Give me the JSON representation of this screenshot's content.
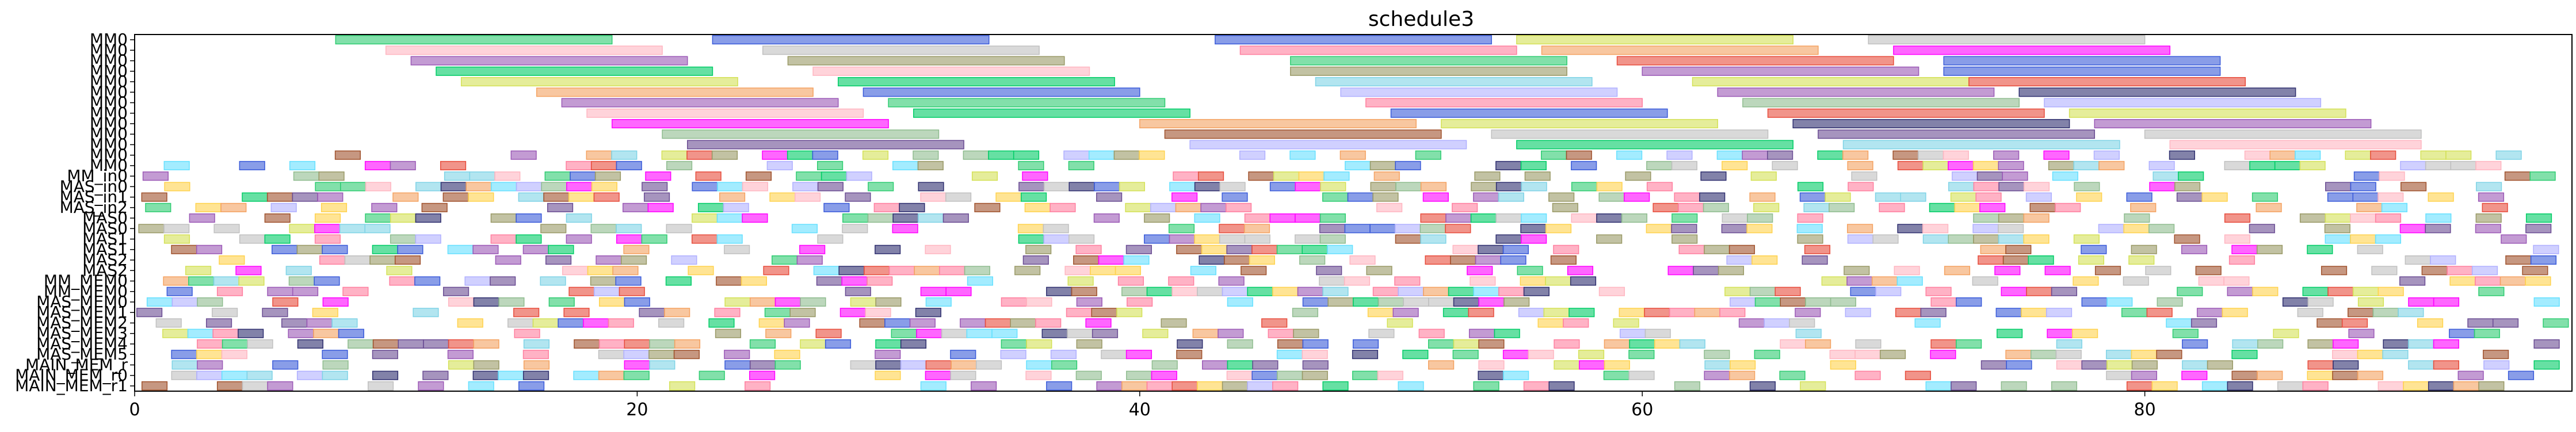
{
  "chart_data": {
    "type": "gantt",
    "title": "schedule3",
    "xlabel": "",
    "ylabel": "",
    "xlim": [
      0,
      97
    ],
    "x_ticks": [
      0,
      20,
      40,
      60,
      80
    ],
    "grid": false,
    "rows": [
      "MM0",
      "MM0",
      "MM0",
      "MM0",
      "MM0",
      "MM0",
      "MM0",
      "MM0",
      "MM0",
      "MM0",
      "MM0",
      "MM0",
      "MM0",
      "MM_in0",
      "MAS_in0",
      "MAS_in1",
      "MAS_in2",
      "MAS0",
      "MAS0",
      "MAS1",
      "MAS1",
      "MAS2",
      "MAS2",
      "MM_MEM0",
      "MM_MEM0",
      "MAS_MEM0",
      "MAS_MEM1",
      "MAS_MEM2",
      "MAS_MEM3",
      "MAS_MEM4",
      "MAS_MEM5",
      "MAIN_MEM_r",
      "MAIN_MEM_r0",
      "MAIN_MEM_r1"
    ],
    "palette": [
      "#2ecc71",
      "#3a5bd9",
      "#c0c0c0",
      "#ff7f9f",
      "#9b59b6",
      "#8fbc8f",
      "#e74c3c",
      "#7fd3e6",
      "#d4e157",
      "#f4a261",
      "#6a4c93",
      "#b0b0ff",
      "#a0522d",
      "#66e0ff",
      "#2f2f6f",
      "#ffb6c1",
      "#00cc66",
      "#ff00ff",
      "#ffd24d",
      "#999966"
    ],
    "long_bars": [
      {
        "row": 0,
        "start": 8,
        "end": 19,
        "c": 0
      },
      {
        "row": 0,
        "start": 23,
        "end": 34,
        "c": 1
      },
      {
        "row": 0,
        "start": 43,
        "end": 54,
        "c": 1
      },
      {
        "row": 0,
        "start": 55,
        "end": 66,
        "c": 8
      },
      {
        "row": 0,
        "start": 69,
        "end": 80,
        "c": 2
      },
      {
        "row": 1,
        "start": 10,
        "end": 21,
        "c": 15
      },
      {
        "row": 1,
        "start": 25,
        "end": 36,
        "c": 2
      },
      {
        "row": 1,
        "start": 44,
        "end": 55,
        "c": 3
      },
      {
        "row": 1,
        "start": 56,
        "end": 67,
        "c": 9
      },
      {
        "row": 1,
        "start": 70,
        "end": 81,
        "c": 17
      },
      {
        "row": 2,
        "start": 11,
        "end": 22,
        "c": 4
      },
      {
        "row": 2,
        "start": 26,
        "end": 37,
        "c": 19
      },
      {
        "row": 2,
        "start": 46,
        "end": 57,
        "c": 0
      },
      {
        "row": 2,
        "start": 59,
        "end": 70,
        "c": 6
      },
      {
        "row": 2,
        "start": 72,
        "end": 83,
        "c": 1
      },
      {
        "row": 3,
        "start": 12,
        "end": 23,
        "c": 16
      },
      {
        "row": 3,
        "start": 27,
        "end": 38,
        "c": 15
      },
      {
        "row": 3,
        "start": 46,
        "end": 57,
        "c": 19
      },
      {
        "row": 3,
        "start": 60,
        "end": 71,
        "c": 4
      },
      {
        "row": 3,
        "start": 72,
        "end": 83,
        "c": 1
      },
      {
        "row": 4,
        "start": 13,
        "end": 24,
        "c": 8
      },
      {
        "row": 4,
        "start": 28,
        "end": 39,
        "c": 16
      },
      {
        "row": 4,
        "start": 47,
        "end": 58,
        "c": 7
      },
      {
        "row": 4,
        "start": 62,
        "end": 73,
        "c": 8
      },
      {
        "row": 4,
        "start": 73,
        "end": 84,
        "c": 6
      },
      {
        "row": 5,
        "start": 16,
        "end": 27,
        "c": 9
      },
      {
        "row": 5,
        "start": 29,
        "end": 40,
        "c": 1
      },
      {
        "row": 5,
        "start": 48,
        "end": 59,
        "c": 11
      },
      {
        "row": 5,
        "start": 63,
        "end": 74,
        "c": 4
      },
      {
        "row": 5,
        "start": 75,
        "end": 86,
        "c": 14
      },
      {
        "row": 6,
        "start": 17,
        "end": 28,
        "c": 4
      },
      {
        "row": 6,
        "start": 30,
        "end": 41,
        "c": 0
      },
      {
        "row": 6,
        "start": 49,
        "end": 60,
        "c": 3
      },
      {
        "row": 6,
        "start": 64,
        "end": 75,
        "c": 5
      },
      {
        "row": 6,
        "start": 76,
        "end": 87,
        "c": 11
      },
      {
        "row": 7,
        "start": 18,
        "end": 29,
        "c": 15
      },
      {
        "row": 7,
        "start": 31,
        "end": 42,
        "c": 16
      },
      {
        "row": 7,
        "start": 50,
        "end": 61,
        "c": 1
      },
      {
        "row": 7,
        "start": 65,
        "end": 76,
        "c": 6
      },
      {
        "row": 7,
        "start": 77,
        "end": 88,
        "c": 8
      },
      {
        "row": 8,
        "start": 19,
        "end": 30,
        "c": 17
      },
      {
        "row": 8,
        "start": 40,
        "end": 51,
        "c": 9
      },
      {
        "row": 8,
        "start": 52,
        "end": 63,
        "c": 8
      },
      {
        "row": 8,
        "start": 66,
        "end": 77,
        "c": 14
      },
      {
        "row": 8,
        "start": 78,
        "end": 89,
        "c": 4
      },
      {
        "row": 9,
        "start": 21,
        "end": 32,
        "c": 5
      },
      {
        "row": 9,
        "start": 41,
        "end": 52,
        "c": 12
      },
      {
        "row": 9,
        "start": 54,
        "end": 65,
        "c": 2
      },
      {
        "row": 9,
        "start": 67,
        "end": 78,
        "c": 10
      },
      {
        "row": 9,
        "start": 80,
        "end": 91,
        "c": 2
      },
      {
        "row": 10,
        "start": 22,
        "end": 33,
        "c": 10
      },
      {
        "row": 10,
        "start": 42,
        "end": 53,
        "c": 11
      },
      {
        "row": 10,
        "start": 55,
        "end": 66,
        "c": 16
      },
      {
        "row": 10,
        "start": 68,
        "end": 79,
        "c": 7
      },
      {
        "row": 10,
        "start": 81,
        "end": 91,
        "c": 15
      }
    ],
    "short_bars_rows": [
      11,
      33
    ],
    "short_bar_width": 1,
    "short_bar_xmax": 96
  }
}
